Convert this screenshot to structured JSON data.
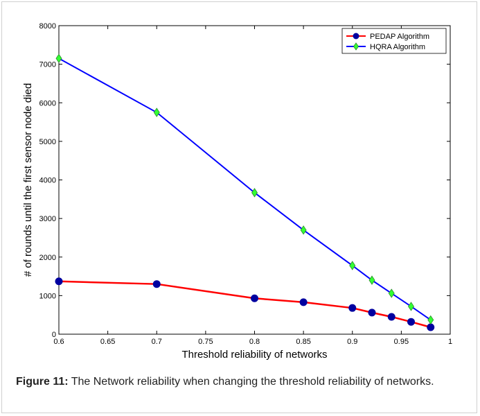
{
  "figure": {
    "caption_label": "Figure 11:",
    "caption_text": " The Network reliability when changing the threshold reliability of networks."
  },
  "chart_data": {
    "type": "line",
    "title": "",
    "xlabel": "Threshold reliability of networks",
    "ylabel": "# of rounds until the first sensor node died",
    "xlim": [
      0.6,
      1
    ],
    "ylim": [
      0,
      8000
    ],
    "x_ticks": [
      0.6,
      0.65,
      0.7,
      0.75,
      0.8,
      0.85,
      0.9,
      0.95,
      1
    ],
    "x_tick_labels": [
      "0.6",
      "0.65",
      "0.7",
      "0.75",
      "0.8",
      "0.85",
      "0.9",
      "0.95",
      "1"
    ],
    "y_ticks": [
      0,
      1000,
      2000,
      3000,
      4000,
      5000,
      6000,
      7000,
      8000
    ],
    "y_tick_labels": [
      "0",
      "1000",
      "2000",
      "3000",
      "4000",
      "5000",
      "6000",
      "7000",
      "8000"
    ],
    "grid": false,
    "legend_position": "top-right",
    "x": [
      0.6,
      0.7,
      0.8,
      0.85,
      0.9,
      0.92,
      0.94,
      0.96,
      0.98
    ],
    "series": [
      {
        "name": "PEDAP Algorithm",
        "line_color": "#ff0000",
        "marker_color": "#0000a0",
        "marker": "circle",
        "values": [
          1370,
          1300,
          930,
          830,
          680,
          560,
          450,
          320,
          180
        ]
      },
      {
        "name": "HQRA Algorithm",
        "line_color": "#0000ff",
        "marker_color": "#33ff33",
        "marker": "diamond",
        "values": [
          7150,
          5750,
          3670,
          2700,
          1780,
          1400,
          1060,
          720,
          370
        ]
      }
    ]
  }
}
